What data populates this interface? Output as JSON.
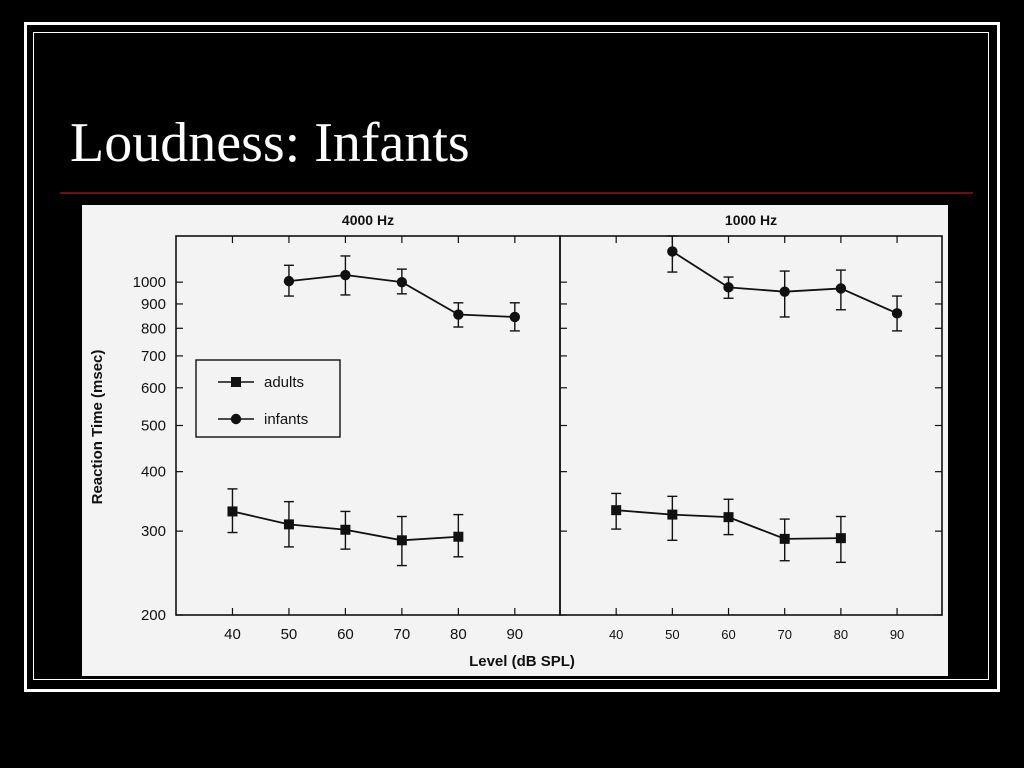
{
  "slide": {
    "title": "Loudness: Infants",
    "accent_rule_color": "#6e0f0f"
  },
  "chart_data": [
    {
      "type": "line",
      "title": "4000 Hz",
      "xlabel": "Level (dB SPL)",
      "ylabel": "Reaction Time (msec)",
      "x_ticks": [
        40,
        50,
        60,
        70,
        80,
        90
      ],
      "y_ticks": [
        200,
        300,
        400,
        500,
        600,
        700,
        800,
        900,
        1000
      ],
      "y_scale": "log",
      "xlim": [
        30,
        98
      ],
      "ylim": [
        200,
        1250
      ],
      "legend": {
        "position": "middle-left",
        "entries": [
          "adults",
          "infants"
        ]
      },
      "series": [
        {
          "name": "adults",
          "marker": "square",
          "x": [
            40,
            50,
            60,
            70,
            80
          ],
          "y": [
            330,
            310,
            302,
            287,
            292
          ],
          "err_low": [
            298,
            278,
            275,
            254,
            265
          ],
          "err_high": [
            368,
            346,
            330,
            322,
            325
          ]
        },
        {
          "name": "infants",
          "marker": "circle",
          "x": [
            50,
            60,
            70,
            80,
            90
          ],
          "y": [
            1005,
            1035,
            1000,
            855,
            845
          ],
          "err_low": [
            935,
            940,
            945,
            805,
            790
          ],
          "err_high": [
            1085,
            1135,
            1065,
            905,
            905
          ]
        }
      ]
    },
    {
      "type": "line",
      "title": "1000 Hz",
      "xlabel": "Level (dB SPL)",
      "ylabel": "Reaction Time (msec)",
      "x_ticks": [
        40,
        50,
        60,
        70,
        80,
        90
      ],
      "y_ticks": [
        200,
        300,
        400,
        500,
        600,
        700,
        800,
        900,
        1000
      ],
      "y_scale": "log",
      "xlim": [
        30,
        98
      ],
      "ylim": [
        200,
        1250
      ],
      "series": [
        {
          "name": "adults",
          "marker": "square",
          "x": [
            40,
            50,
            60,
            70,
            80
          ],
          "y": [
            332,
            325,
            321,
            289,
            290
          ],
          "err_low": [
            303,
            287,
            295,
            260,
            258
          ],
          "err_high": [
            360,
            355,
            350,
            318,
            322
          ]
        },
        {
          "name": "infants",
          "marker": "circle",
          "x": [
            50,
            60,
            70,
            80,
            90
          ],
          "y": [
            1160,
            975,
            955,
            970,
            860
          ],
          "err_low": [
            1050,
            925,
            845,
            875,
            790
          ],
          "err_high": [
            1250,
            1025,
            1055,
            1060,
            935
          ]
        }
      ]
    }
  ]
}
